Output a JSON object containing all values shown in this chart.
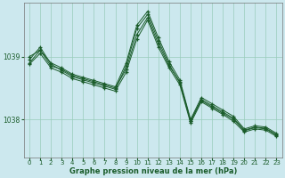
{
  "xlabel": "Graphe pression niveau de la mer (hPa)",
  "bg_color": "#cce8ee",
  "grid_color": "#99ccbb",
  "line_color": "#1a5c2a",
  "ylim": [
    1037.4,
    1039.85
  ],
  "xlim": [
    -0.5,
    23.5
  ],
  "yticks": [
    1038,
    1039
  ],
  "xticks": [
    0,
    1,
    2,
    3,
    4,
    5,
    6,
    7,
    8,
    9,
    10,
    11,
    12,
    13,
    14,
    15,
    16,
    17,
    18,
    19,
    20,
    21,
    22,
    23
  ],
  "series": [
    [
      1038.9,
      1039.1,
      1038.85,
      1038.8,
      1038.7,
      1038.65,
      1038.6,
      1038.55,
      1038.5,
      1038.8,
      1039.35,
      1039.62,
      1039.2,
      1038.85,
      1038.6,
      1037.97,
      1038.3,
      1038.2,
      1038.1,
      1038.0,
      1037.82,
      1037.87,
      1037.85,
      1037.75
    ],
    [
      1039.0,
      1039.1,
      1038.9,
      1038.82,
      1038.72,
      1038.67,
      1038.62,
      1038.57,
      1038.52,
      1038.9,
      1039.5,
      1039.72,
      1039.3,
      1038.92,
      1038.63,
      1038.0,
      1038.35,
      1038.25,
      1038.15,
      1038.05,
      1037.85,
      1037.9,
      1037.88,
      1037.78
    ],
    [
      1038.95,
      1039.15,
      1038.88,
      1038.78,
      1038.68,
      1038.63,
      1038.58,
      1038.53,
      1038.48,
      1038.85,
      1039.45,
      1039.67,
      1039.25,
      1038.88,
      1038.58,
      1037.98,
      1038.32,
      1038.22,
      1038.12,
      1038.02,
      1037.83,
      1037.88,
      1037.86,
      1037.76
    ],
    [
      1038.88,
      1039.05,
      1038.82,
      1038.75,
      1038.65,
      1038.6,
      1038.55,
      1038.5,
      1038.45,
      1038.75,
      1039.28,
      1039.58,
      1039.15,
      1038.82,
      1038.55,
      1037.94,
      1038.28,
      1038.18,
      1038.08,
      1037.97,
      1037.8,
      1037.85,
      1037.83,
      1037.73
    ]
  ]
}
